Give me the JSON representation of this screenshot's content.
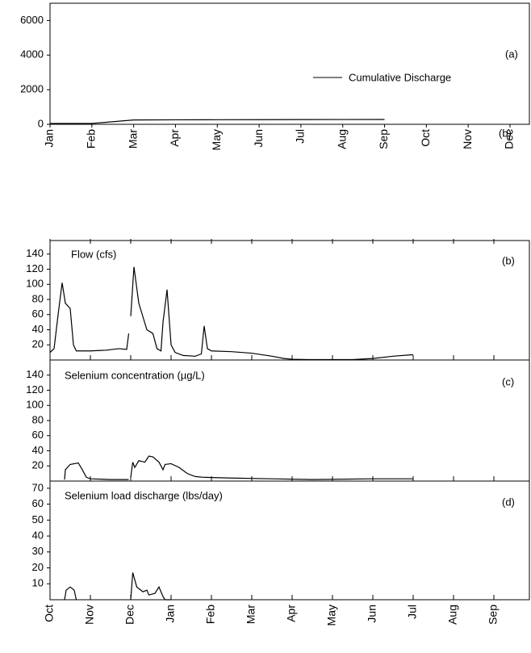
{
  "chart_data": [
    {
      "type": "line",
      "annotations": [
        "(a)",
        "(b)"
      ],
      "categories": [
        "Jan",
        "Feb",
        "Mar",
        "Apr",
        "May",
        "Jun",
        "Jul",
        "Aug",
        "Sep",
        "Oct",
        "Nov",
        "Dec"
      ],
      "series": [
        {
          "name": "Cumulative Discharge",
          "color": "#000000",
          "values": [
            50,
            50,
            250,
            260,
            265,
            270,
            275,
            278,
            280,
            null,
            null,
            null
          ]
        }
      ],
      "ylim": [
        0,
        7000
      ],
      "yticks": [
        0,
        2000,
        4000,
        6000
      ]
    },
    {
      "type": "line",
      "annotations": [
        "Flow (cfs)",
        "(b)"
      ],
      "x": [
        0,
        0.1,
        0.2,
        0.3,
        0.38,
        0.5,
        0.58,
        0.65,
        1.0,
        1.4,
        1.7,
        1.9,
        1.95,
        null,
        2.0,
        2.08,
        2.2,
        2.4,
        2.55,
        2.65,
        2.75,
        2.8,
        2.9,
        3.0,
        3.1,
        3.3,
        3.6,
        3.75,
        3.82,
        3.9,
        4.0,
        4.5,
        5.0,
        5.5,
        5.8,
        6.0,
        6.5,
        7.5,
        8.0,
        8.5,
        9.0
      ],
      "series": [
        {
          "name": "Flow",
          "color": "#000000",
          "values": [
            10,
            15,
            60,
            102,
            75,
            68,
            20,
            12,
            12,
            13,
            15,
            14,
            35,
            null,
            58,
            123,
            75,
            40,
            35,
            15,
            12,
            50,
            93,
            20,
            10,
            6,
            5,
            8,
            45,
            15,
            12,
            11,
            9,
            5,
            2,
            1,
            0.5,
            0.5,
            2,
            5,
            7
          ]
        }
      ],
      "xlim": [
        0,
        11.88
      ],
      "ylim": [
        0,
        160
      ],
      "yticks": [
        20,
        40,
        60,
        80,
        100,
        120,
        140
      ]
    },
    {
      "type": "line",
      "annotations": [
        "Selenium concentration (µg/L)",
        "(c)"
      ],
      "x": [
        0.36,
        0.38,
        0.5,
        0.7,
        0.8,
        0.9,
        1.0,
        1.5,
        1.95,
        null,
        2.0,
        2.05,
        2.1,
        2.2,
        2.35,
        2.45,
        2.55,
        2.7,
        2.8,
        2.85,
        3.0,
        3.2,
        3.4,
        3.6,
        3.8,
        4.5,
        5.5,
        6.5,
        8.0,
        9.0
      ],
      "series": [
        {
          "name": "Selenium concentration",
          "color": "#000000",
          "values": [
            2,
            15,
            22,
            24,
            15,
            5,
            3,
            2,
            2,
            null,
            5,
            25,
            18,
            27,
            25,
            33,
            32,
            25,
            15,
            22,
            23,
            18,
            10,
            6,
            5,
            4,
            3,
            2,
            3,
            3
          ]
        }
      ],
      "xlim": [
        0,
        11.88
      ],
      "ylim": [
        0,
        160
      ],
      "yticks": [
        20,
        40,
        60,
        80,
        100,
        120,
        140
      ]
    },
    {
      "type": "line",
      "annotations": [
        "Selenium load discharge (lbs/day)",
        "(d)"
      ],
      "x": [
        0.36,
        0.4,
        0.5,
        0.6,
        0.65,
        null,
        2.0,
        2.05,
        2.15,
        2.3,
        2.4,
        2.45,
        2.6,
        2.7,
        2.8,
        2.85,
        3.0
      ],
      "series": [
        {
          "name": "Selenium load discharge",
          "color": "#000000",
          "values": [
            0,
            6,
            8,
            6,
            0,
            null,
            0,
            17,
            8,
            5,
            6,
            3,
            4,
            8,
            2,
            0,
            0
          ]
        }
      ],
      "xlim": [
        0,
        11.88
      ],
      "ylim": [
        0,
        75
      ],
      "yticks": [
        10,
        20,
        30,
        40,
        50,
        60,
        70
      ],
      "xticks": [
        {
          "value": 0,
          "label": "Oct"
        },
        {
          "value": 1,
          "label": "Nov"
        },
        {
          "value": 2,
          "label": "Dec"
        },
        {
          "value": 3,
          "label": "Jan"
        },
        {
          "value": 4,
          "label": "Feb"
        },
        {
          "value": 5,
          "label": "Mar"
        },
        {
          "value": 6,
          "label": "Apr"
        },
        {
          "value": 7,
          "label": "May"
        },
        {
          "value": 8,
          "label": "Jun"
        },
        {
          "value": 9,
          "label": "Jul"
        },
        {
          "value": 10,
          "label": "Aug"
        },
        {
          "value": 11,
          "label": "Sep"
        }
      ]
    }
  ]
}
